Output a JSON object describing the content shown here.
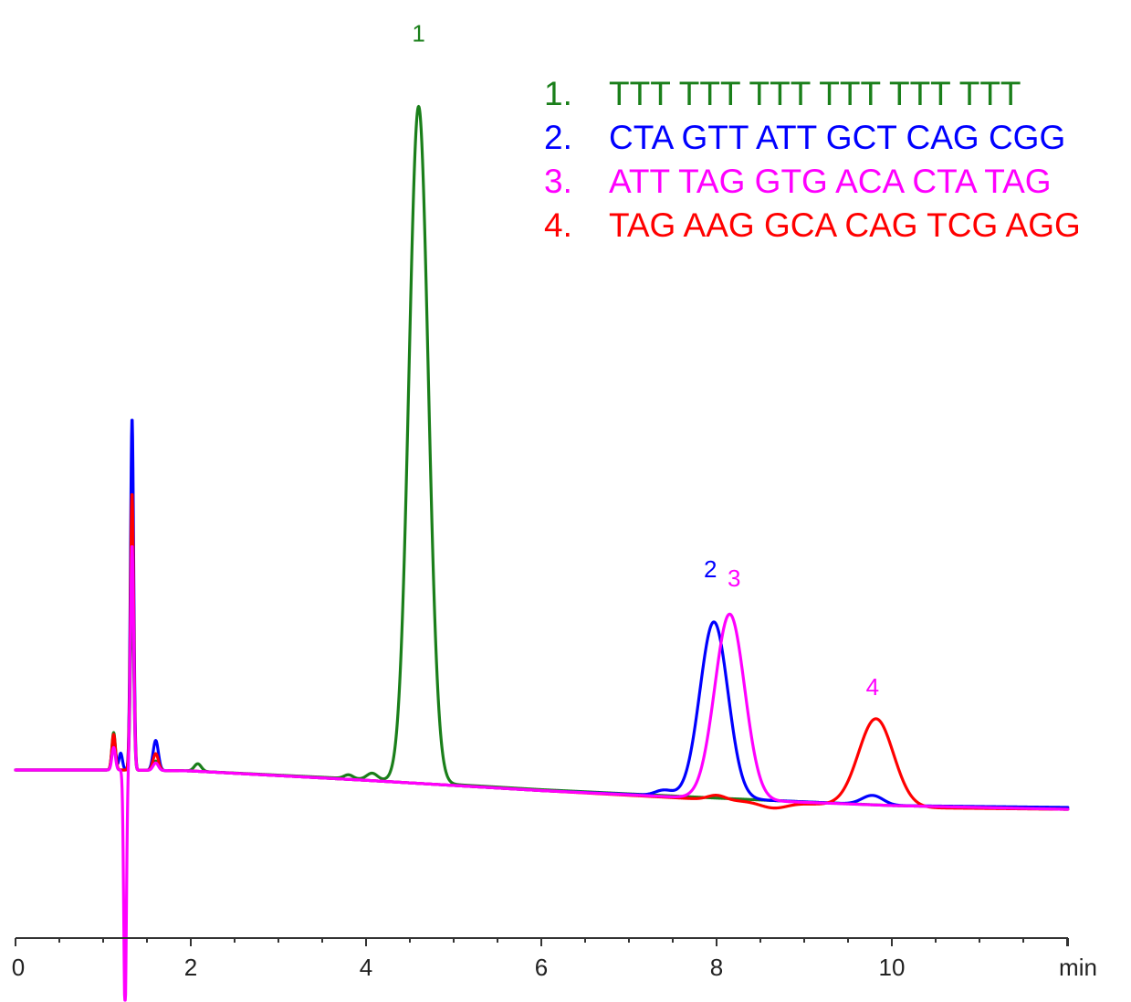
{
  "chart_data": {
    "type": "line",
    "title": "",
    "xlabel": "min",
    "ylabel": "",
    "xlim": [
      0,
      12
    ],
    "x_ticks": [
      "0",
      "2",
      "4",
      "6",
      "8",
      "10"
    ],
    "grid": false,
    "legend_placement": "top-right",
    "legend": [
      {
        "number": "1.",
        "sequence": "TTT TTT TTT TTT TTT TTT",
        "color": "#1a7f1a"
      },
      {
        "number": "2.",
        "sequence": "CTA GTT ATT GCT CAG CGG",
        "color": "#0000ff"
      },
      {
        "number": "3.",
        "sequence": "ATT TAG GTG ACA CTA TAG",
        "color": "#ff00ff"
      },
      {
        "number": "4.",
        "sequence": "TAG AAG GCA CAG TCG AGG",
        "color": "#ff0000"
      }
    ],
    "series": [
      {
        "color": "#1a7f1a",
        "baseline": [
          [
            0,
            0.0
          ],
          [
            1.25,
            0.0
          ],
          [
            2.0,
            -0.05
          ],
          [
            4.0,
            -0.5
          ],
          [
            6.0,
            -1.05
          ],
          [
            8.0,
            -1.5
          ],
          [
            10.0,
            -1.9
          ],
          [
            12.0,
            -2.1
          ]
        ],
        "peaks": [
          {
            "x": 1.12,
            "height": 2.0,
            "width": 0.02
          },
          {
            "x": 1.33,
            "height": 10.0,
            "width": 0.018
          },
          {
            "x": 1.6,
            "height": 0.5,
            "width": 0.03
          },
          {
            "x": 2.08,
            "height": 0.4,
            "width": 0.04
          },
          {
            "x": 3.8,
            "height": 0.2,
            "width": 0.05
          },
          {
            "x": 4.07,
            "height": 0.35,
            "width": 0.06
          },
          {
            "x": 4.6,
            "height": 36.1,
            "width": 0.11
          }
        ]
      },
      {
        "color": "#0000ff",
        "baseline": [
          [
            0,
            0.0
          ],
          [
            1.25,
            0.0
          ],
          [
            2.0,
            -0.05
          ],
          [
            4.0,
            -0.55
          ],
          [
            6.0,
            -1.1
          ],
          [
            8.0,
            -1.5
          ],
          [
            10.0,
            -1.9
          ],
          [
            12.0,
            -2.0
          ]
        ],
        "peaks": [
          {
            "x": 1.12,
            "height": 1.7,
            "width": 0.02
          },
          {
            "x": 1.2,
            "height": 0.9,
            "width": 0.02
          },
          {
            "x": 1.33,
            "height": 18.8,
            "width": 0.018
          },
          {
            "x": 1.6,
            "height": 1.6,
            "width": 0.03
          },
          {
            "x": 7.4,
            "height": 0.3,
            "width": 0.1
          },
          {
            "x": 7.97,
            "height": 9.4,
            "width": 0.16
          },
          {
            "x": 9.78,
            "height": 0.5,
            "width": 0.12
          }
        ]
      },
      {
        "color": "#ff00ff",
        "baseline": [
          [
            0,
            0.0
          ],
          [
            1.25,
            0.0
          ],
          [
            2.0,
            -0.05
          ],
          [
            4.0,
            -0.55
          ],
          [
            6.0,
            -1.1
          ],
          [
            8.0,
            -1.55
          ],
          [
            10.0,
            -1.9
          ],
          [
            12.0,
            -2.1
          ]
        ],
        "peaks": [
          {
            "x": 1.12,
            "height": 1.2,
            "width": 0.02
          },
          {
            "x": 1.33,
            "height": 12.0,
            "width": 0.018
          },
          {
            "x": 1.6,
            "height": 0.4,
            "width": 0.03
          },
          {
            "x": 8.15,
            "height": 9.9,
            "width": 0.17
          }
        ],
        "dips": [
          {
            "x": 1.25,
            "depth": 13.0,
            "width": 0.015
          }
        ]
      },
      {
        "color": "#ff0000",
        "baseline": [
          [
            0,
            0.0
          ],
          [
            1.25,
            0.0
          ],
          [
            2.0,
            -0.05
          ],
          [
            4.0,
            -0.55
          ],
          [
            6.0,
            -1.1
          ],
          [
            8.0,
            -1.6
          ],
          [
            10.0,
            -2.0
          ],
          [
            12.0,
            -2.1
          ]
        ],
        "peaks": [
          {
            "x": 1.12,
            "height": 1.9,
            "width": 0.02
          },
          {
            "x": 1.33,
            "height": 14.8,
            "width": 0.018
          },
          {
            "x": 1.6,
            "height": 0.9,
            "width": 0.03
          },
          {
            "x": 8.0,
            "height": 0.25,
            "width": 0.1
          },
          {
            "x": 8.65,
            "height": -0.3,
            "width": 0.15
          },
          {
            "x": 9.82,
            "height": 4.7,
            "width": 0.2
          }
        ]
      }
    ],
    "peak_labels": [
      {
        "text": "1",
        "x": 4.6,
        "y": 38.9,
        "color": "#1a7f1a"
      },
      {
        "text": "2",
        "x": 7.93,
        "y": 10.3,
        "color": "#0000ff"
      },
      {
        "text": "3",
        "x": 8.2,
        "y": 9.8,
        "color": "#ff00ff"
      },
      {
        "text": "4",
        "x": 9.78,
        "y": 4.0,
        "color": "#ff00ff"
      }
    ]
  }
}
